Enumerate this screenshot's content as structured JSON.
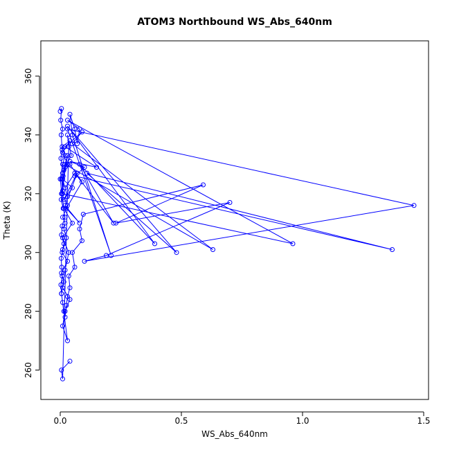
{
  "chart_data": {
    "type": "line",
    "title": "ATOM3 Northbound WS_Abs_640nm",
    "xlabel": "WS_Abs_640nm",
    "ylabel": "Theta (K)",
    "xlim": [
      -0.08,
      1.52
    ],
    "ylim": [
      250,
      372
    ],
    "xticks": [
      0.0,
      0.5,
      1.0,
      1.5
    ],
    "xtick_labels": [
      "0.0",
      "0.5",
      "1.0",
      "1.5"
    ],
    "yticks": [
      260,
      280,
      300,
      320,
      340,
      360
    ],
    "ytick_labels": [
      "260",
      "280",
      "300",
      "320",
      "340",
      "360"
    ],
    "grid": false,
    "legend": "none",
    "marker": "open-circle",
    "series_color": "#0000ff",
    "series": [
      {
        "x": [
          0.0,
          0.005,
          0.002,
          0.01,
          0.004,
          0.008,
          0.003,
          0.012,
          0.006,
          0.03,
          0.01,
          0.02,
          0.015,
          0.025,
          0.008,
          0.03,
          0.005,
          0.015,
          0.01,
          0.04,
          0.02,
          0.01,
          0.03,
          0.005,
          0.02,
          0.035,
          0.01,
          0.05,
          0.015,
          0.006,
          0.0,
          0.01,
          0.02,
          0.008,
          0.04,
          0.01,
          0.03,
          0.015,
          0.005,
          0.01,
          0.004,
          0.012,
          0.02,
          0.008,
          0.005,
          0.015,
          0.01,
          0.004,
          0.006,
          0.008,
          0.003,
          0.005,
          0.01,
          0.015,
          0.02,
          0.025,
          0.03,
          0.04,
          0.035,
          0.06,
          0.05,
          0.09,
          0.08,
          0.095,
          0.59,
          0.23,
          0.7,
          0.19,
          0.1,
          1.46,
          0.03,
          0.21,
          0.05,
          0.04,
          0.06,
          0.07,
          0.08,
          0.03,
          0.96,
          0.01,
          0.02,
          0.63,
          0.05,
          0.09,
          0.02,
          0.15,
          0.04,
          0.1,
          0.06,
          1.37,
          0.11,
          0.48,
          0.03,
          0.39,
          0.08,
          0.22,
          0.06,
          0.02,
          0.03,
          0.01,
          0.05,
          0.015,
          0.07,
          0.02,
          0.08,
          0.025,
          0.09,
          0.04,
          0.01,
          0.03,
          0.005,
          0.02,
          0.045,
          0.03,
          0.035,
          0.01,
          0.005,
          0.04
        ],
        "y": [
          348,
          349,
          345,
          342,
          340,
          335,
          332,
          326,
          320,
          316,
          312,
          310,
          308,
          305,
          300,
          297,
          293,
          290,
          288,
          284,
          280,
          275,
          270,
          286,
          294,
          300,
          305,
          310,
          315,
          320,
          325,
          330,
          333,
          336,
          338,
          334,
          330,
          328,
          325,
          321,
          318,
          315,
          312,
          309,
          306,
          303,
          301,
          298,
          295,
          292,
          289,
          286,
          283,
          280,
          278,
          282,
          285,
          288,
          292,
          295,
          300,
          304,
          308,
          313,
          323,
          310,
          317,
          299,
          297,
          316,
          342,
          299,
          340,
          347,
          342,
          337,
          342,
          345,
          303,
          320,
          330,
          301,
          337,
          341,
          336,
          329,
          331,
          329,
          326,
          301,
          327,
          300,
          343,
          303,
          330,
          310,
          327,
          322,
          319,
          325,
          322,
          318,
          327,
          316,
          310,
          315,
          324,
          330,
          327,
          333,
          320,
          329,
          333,
          340,
          336,
          257,
          260,
          263
        ]
      }
    ]
  }
}
